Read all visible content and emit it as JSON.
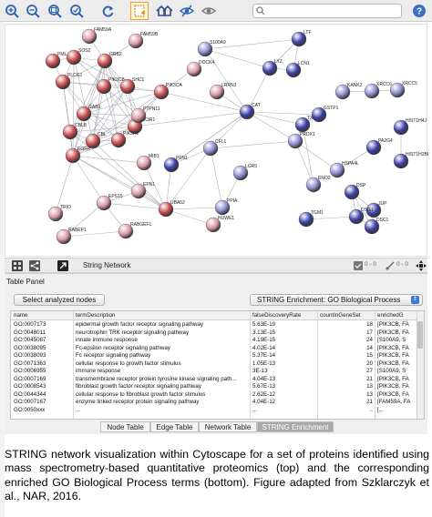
{
  "toolbar": {
    "search_placeholder": ""
  },
  "network": {
    "edge_color": "#9a9aa6",
    "groups": {
      "red": "#c84a4e",
      "pink": "#d99aa4",
      "blue": "#3b3fa8",
      "lilac": "#8c8ed0"
    },
    "nodes": [
      {
        "id": "PML",
        "group": "red"
      },
      {
        "id": "SOS2",
        "group": "red"
      },
      {
        "id": "GRB2",
        "group": "red"
      },
      {
        "id": "FAM59A",
        "group": "pink"
      },
      {
        "id": "FAM59B",
        "group": "pink"
      },
      {
        "id": "PLCG1",
        "group": "red"
      },
      {
        "id": "SHC1",
        "group": "red"
      },
      {
        "id": "PIK3CA",
        "group": "red"
      },
      {
        "id": "PIK3CB",
        "group": "red"
      },
      {
        "id": "PIK3R1",
        "group": "red"
      },
      {
        "id": "PIK3R2",
        "group": "red"
      },
      {
        "id": "CBLB",
        "group": "red"
      },
      {
        "id": "PTPN11",
        "group": "pink"
      },
      {
        "id": "GAB1",
        "group": "red"
      },
      {
        "id": "CBL",
        "group": "red"
      },
      {
        "id": "EGFR",
        "group": "red"
      },
      {
        "id": "MIB1",
        "group": "pink"
      },
      {
        "id": "EPN1",
        "group": "pink"
      },
      {
        "id": "EPS15",
        "group": "pink"
      },
      {
        "id": "TRIO",
        "group": "pink"
      },
      {
        "id": "RABEP1",
        "group": "pink"
      },
      {
        "id": "RABGEF1",
        "group": "pink"
      },
      {
        "id": "UBA52",
        "group": "red"
      },
      {
        "id": "HUWE1",
        "group": "pink"
      },
      {
        "id": "PPIA",
        "group": "lilac"
      },
      {
        "id": "LGR5",
        "group": "lilac"
      },
      {
        "id": "CFL1",
        "group": "lilac"
      },
      {
        "id": "PFN1",
        "group": "blue"
      },
      {
        "id": "CAT",
        "group": "blue"
      },
      {
        "id": "LRRN3",
        "group": "pink"
      },
      {
        "id": "DOCK4",
        "group": "pink"
      },
      {
        "id": "S100A9",
        "group": "lilac"
      },
      {
        "id": "LYZ",
        "group": "blue"
      },
      {
        "id": "LTF",
        "group": "blue"
      },
      {
        "id": "LCN1",
        "group": "blue"
      },
      {
        "id": "TXN",
        "group": "blue"
      },
      {
        "id": "GSTP1",
        "group": "blue"
      },
      {
        "id": "PRDX1",
        "group": "lilac"
      },
      {
        "id": "ENO2",
        "group": "lilac"
      },
      {
        "id": "HSPA4L",
        "group": "lilac"
      },
      {
        "id": "KANK2",
        "group": "lilac"
      },
      {
        "id": "XRCC6",
        "group": "lilac"
      },
      {
        "id": "XRCC5",
        "group": "lilac"
      },
      {
        "id": "HIST1H4J",
        "group": "blue"
      },
      {
        "id": "HIST1H2BL",
        "group": "blue"
      },
      {
        "id": "PA2G4",
        "group": "blue"
      },
      {
        "id": "DSP",
        "group": "blue"
      },
      {
        "id": "JUP",
        "group": "blue"
      },
      {
        "id": "DSG1",
        "group": "blue"
      },
      {
        "id": "DSC1",
        "group": "blue"
      },
      {
        "id": "TGM1",
        "group": "blue"
      }
    ]
  },
  "netbar": {
    "title": "String Network",
    "count1": "0 - 0",
    "count2": "0 - 0"
  },
  "panel": {
    "title": "Table Panel",
    "select_button": "Select analyzed nodes",
    "combo_value": "STRING Enrichment: GO Biological Process",
    "columns": [
      "name",
      "termDescription",
      "falseDiscoveryRate",
      "countInGeneSet",
      "enrichedG"
    ],
    "rows": [
      [
        "GO:0007173",
        "epidermal growth factor receptor signaling pathway",
        "5.63E-19",
        "18",
        "[PIK3CB, FA"
      ],
      [
        "GO:0048011",
        "neurotrophin TRK receptor signaling pathway",
        "3.13E-15",
        "17",
        "[PIK3CB, FA"
      ],
      [
        "GO:0045087",
        "innate immune response",
        "4.19E-15",
        "24",
        "[S100A9, S"
      ],
      [
        "GO:0038095",
        "Fc-epsilon receptor signaling pathway",
        "4.02E-14",
        "14",
        "[PIK3CB, FA"
      ],
      [
        "GO:0038093",
        "Fc receptor signaling pathway",
        "5.37E-14",
        "15",
        "[PIK3CB, FA"
      ],
      [
        "GO:0071363",
        "cellular response to growth factor stimulus",
        "1.05E-13",
        "20",
        "[PIK3CB, FA"
      ],
      [
        "GO:0006955",
        "immune response",
        "3E-13",
        "27",
        "[S100A9, S"
      ],
      [
        "GO:0007169",
        "transmembrane receptor protein tyrosine kinase signaling path...",
        "4.04E-13",
        "21",
        "[PIK3CB, FA"
      ],
      [
        "GO:0008543",
        "fibroblast growth factor receptor signaling pathway",
        "5.67E-13",
        "13",
        "[PIK3CB, FA"
      ],
      [
        "GO:0044344",
        "cellular response to fibroblast growth factor stimulus",
        "2.62E-12",
        "13",
        "[PIK3CB, FA"
      ],
      [
        "GO:0007167",
        "enzyme linked receptor protein signaling pathway",
        "4.04E-12",
        "21",
        "[FAM59A, FA"
      ],
      [
        "GO:0050xxx",
        "...",
        "...",
        "..",
        "[..."
      ]
    ],
    "tabs": [
      "Node Table",
      "Edge Table",
      "Network Table",
      "STRING Enrichment"
    ],
    "active_tab": 3
  },
  "caption": "STRING network visualization within Cytoscape for a set of proteins identified using mass spectrometry-based quantitative proteomics (top) and the corresponding enriched GO Biological Process terms (bottom). Figure adapted from Szklarczyk et al., NAR, 2016."
}
